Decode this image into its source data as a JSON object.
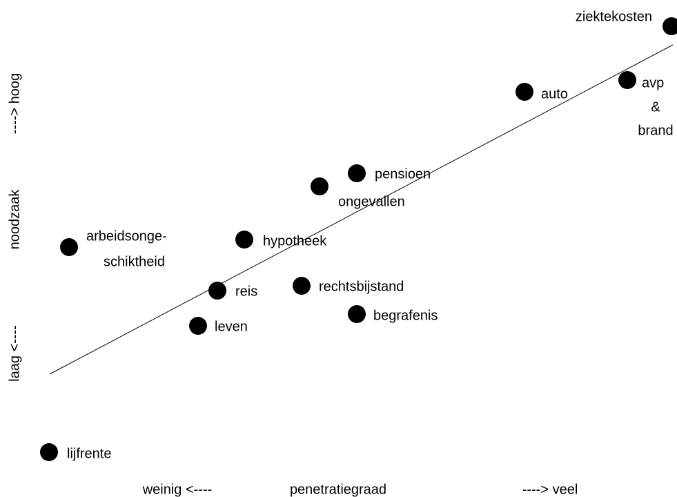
{
  "nodes": [
    {
      "lines": [
        "ziektekosten"
      ]
    },
    {
      "lines": [
        "auto"
      ]
    },
    {
      "lines": [
        "avp",
        "&",
        "brand"
      ]
    },
    {
      "lines": [
        "pensioen"
      ]
    },
    {
      "lines": [
        "ongevallen"
      ]
    },
    {
      "lines": [
        "arbeidsonge-",
        "schiktheid"
      ]
    },
    {
      "lines": [
        "hypotheek"
      ]
    },
    {
      "lines": [
        "reis"
      ]
    },
    {
      "lines": [
        "rechtsbijstand"
      ]
    },
    {
      "lines": [
        "leven"
      ]
    },
    {
      "lines": [
        "begrafenis"
      ]
    },
    {
      "lines": [
        "lijfrente"
      ]
    }
  ],
  "x_axis": {
    "low": "weinig <----",
    "label": "penetratiegraad",
    "high": "----> veel"
  },
  "y_axis": {
    "low": "laag <----",
    "label": "noodzaak",
    "high": "----> hoog"
  }
}
